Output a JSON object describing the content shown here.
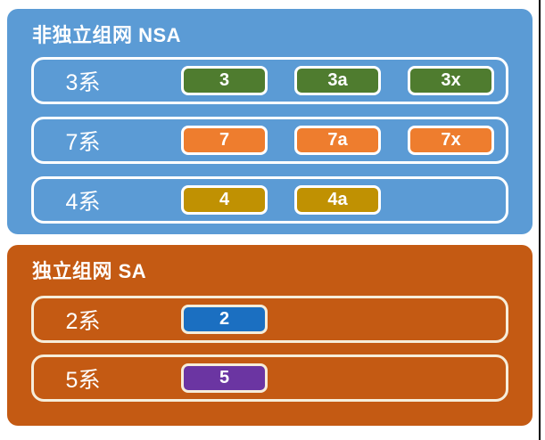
{
  "page": {
    "background": "#ffffff",
    "right_edge_line_color": "#000000"
  },
  "groups": [
    {
      "id": "nsa",
      "title": "非独立组网 NSA",
      "bg_color": "#5b9bd5",
      "border_color": "#ffffff",
      "rows": [
        {
          "label": "3系",
          "options": [
            {
              "label": "3",
              "color": "#4f7c2f"
            },
            {
              "label": "3a",
              "color": "#4f7c2f"
            },
            {
              "label": "3x",
              "color": "#4f7c2f"
            }
          ]
        },
        {
          "label": "7系",
          "options": [
            {
              "label": "7",
              "color": "#ee7d2e"
            },
            {
              "label": "7a",
              "color": "#ee7d2e"
            },
            {
              "label": "7x",
              "color": "#ee7d2e"
            }
          ]
        },
        {
          "label": "4系",
          "options": [
            {
              "label": "4",
              "color": "#c09102"
            },
            {
              "label": "4a",
              "color": "#c09102"
            }
          ]
        }
      ]
    },
    {
      "id": "sa",
      "title": "独立组网 SA",
      "bg_color": "#c45a13",
      "border_color": "#f6edda",
      "rows": [
        {
          "label": "2系",
          "options": [
            {
              "label": "2",
              "color": "#1b6fc1"
            }
          ]
        },
        {
          "label": "5系",
          "options": [
            {
              "label": "5",
              "color": "#6b35a2"
            }
          ]
        }
      ]
    }
  ]
}
